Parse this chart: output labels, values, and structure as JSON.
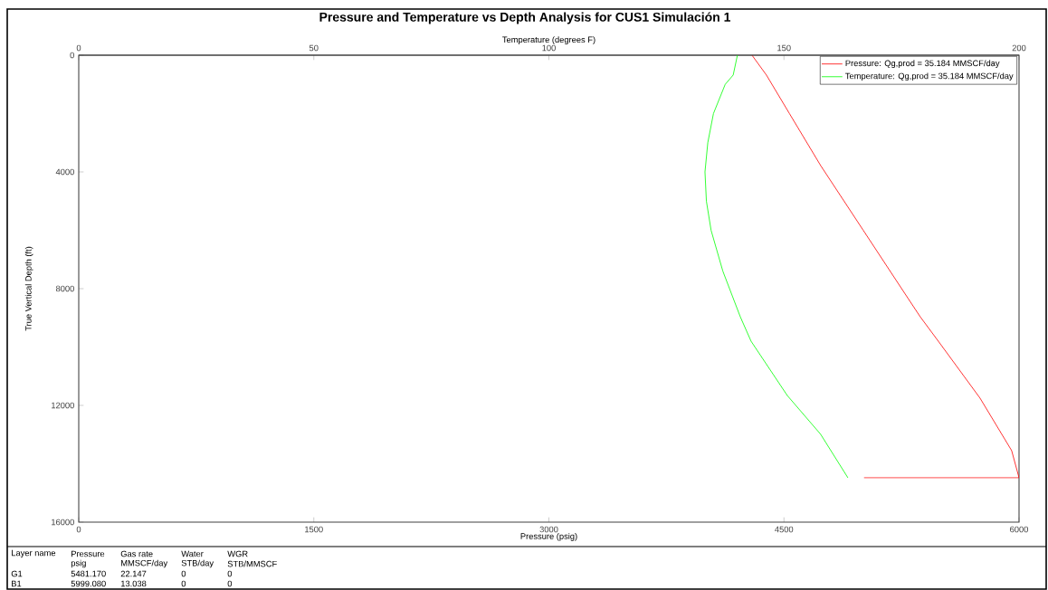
{
  "chart_data": {
    "type": "line",
    "title": "Pressure and Temperature vs Depth Analysis for CUS1 Simulación 1",
    "xlabel": "Pressure (psig)",
    "x2label": "Temperature (degrees F)",
    "ylabel": "True Vertical Depth (ft)",
    "xlim": [
      0,
      6000
    ],
    "xticks": [
      0,
      1500,
      3000,
      4500,
      6000
    ],
    "x2lim": [
      0,
      200
    ],
    "x2ticks": [
      0,
      50,
      100,
      150,
      200
    ],
    "ylim": [
      16000,
      0
    ],
    "yticks": [
      0,
      4000,
      8000,
      12000,
      16000
    ],
    "legend": "top right",
    "marker": "none",
    "line_style": "solid",
    "series": [
      {
        "name": "Pressure: Qg,prod = 35.184 MMSCF/day",
        "color": "#ff0000",
        "x": [
          4296,
          4388,
          4535,
          4734,
          5006,
          5251,
          5369,
          5485,
          5751,
          5779,
          5953,
          6000,
          5011
        ],
        "values": [
          0,
          680,
          2000,
          3780,
          6000,
          8000,
          8960,
          9800,
          11750,
          12000,
          13550,
          14480,
          14480
        ]
      },
      {
        "name": "Temperature: Qg,prod = 35.184 MMSCF/day",
        "color": "#00ff00",
        "axis": "x2",
        "x": [
          140.1,
          139.2,
          137.5,
          135.0,
          133.8,
          133.2,
          133.5,
          134.5,
          137.0,
          140.7,
          143.0,
          150.7,
          157.8,
          163.6
        ],
        "values": [
          0,
          680,
          1000,
          2000,
          3000,
          4000,
          5000,
          6000,
          7400,
          8960,
          9800,
          11660,
          12990,
          14480
        ]
      }
    ],
    "annotations": [
      "Layer name",
      "Pressure",
      "Gas rate",
      "Water",
      "WGR",
      "psig",
      "MMSCF/day",
      "STB/day",
      "STB/MMSCF",
      "G1",
      "5481.170",
      "22.147",
      "0",
      "0",
      "B1",
      "5999.080",
      "13.038",
      "0",
      "0"
    ]
  }
}
